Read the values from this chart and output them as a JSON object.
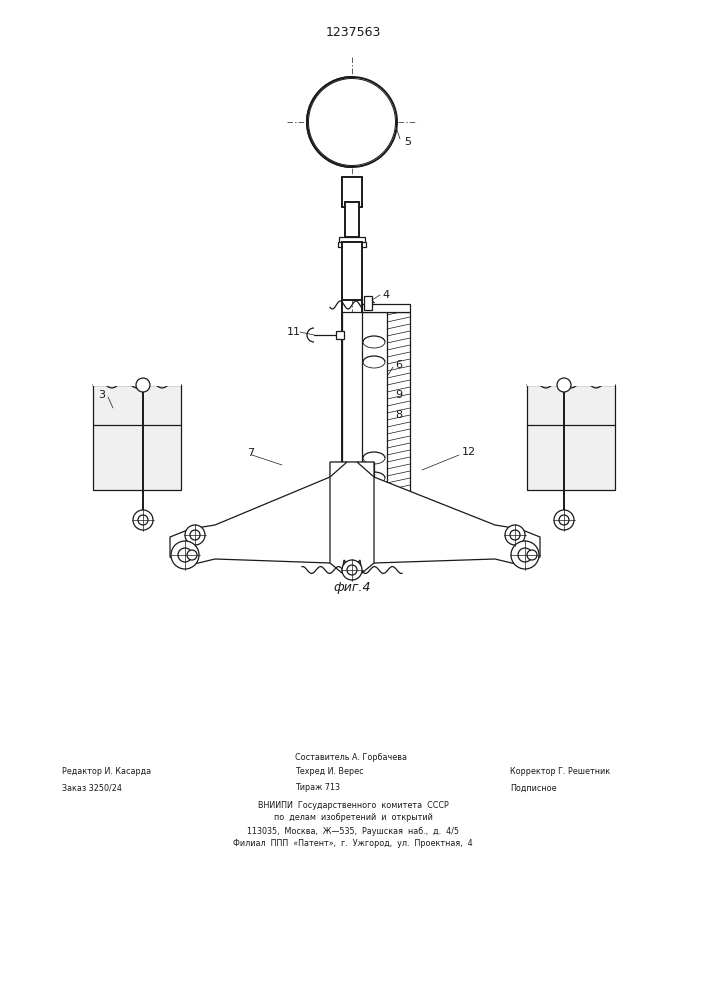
{
  "title": "1237563",
  "fig_label": "фиг.4",
  "bg_color": "#ffffff",
  "line_color": "#1a1a1a",
  "footer_left": [
    "Редактор И. Касарда",
    "Заказ 3250/24"
  ],
  "footer_center_top": "Составитель А. Горбачева",
  "footer_center": [
    "Техред И. Верес",
    "Тираж 713"
  ],
  "footer_right": [
    "Корректор Г. Решетник",
    "Подписное"
  ],
  "footer_vniiipi": [
    "ВНИИПИ  Государственного  комитета  СССР",
    "по  делам  изобретений  и  открытий",
    "113035,  Москва,  Ж—⁠535,  Раушская  наб.,  д.  4/5",
    "Филиал  ППП  «Патент»,  г.  Ужгород,  ул.  Проектная,  4"
  ]
}
